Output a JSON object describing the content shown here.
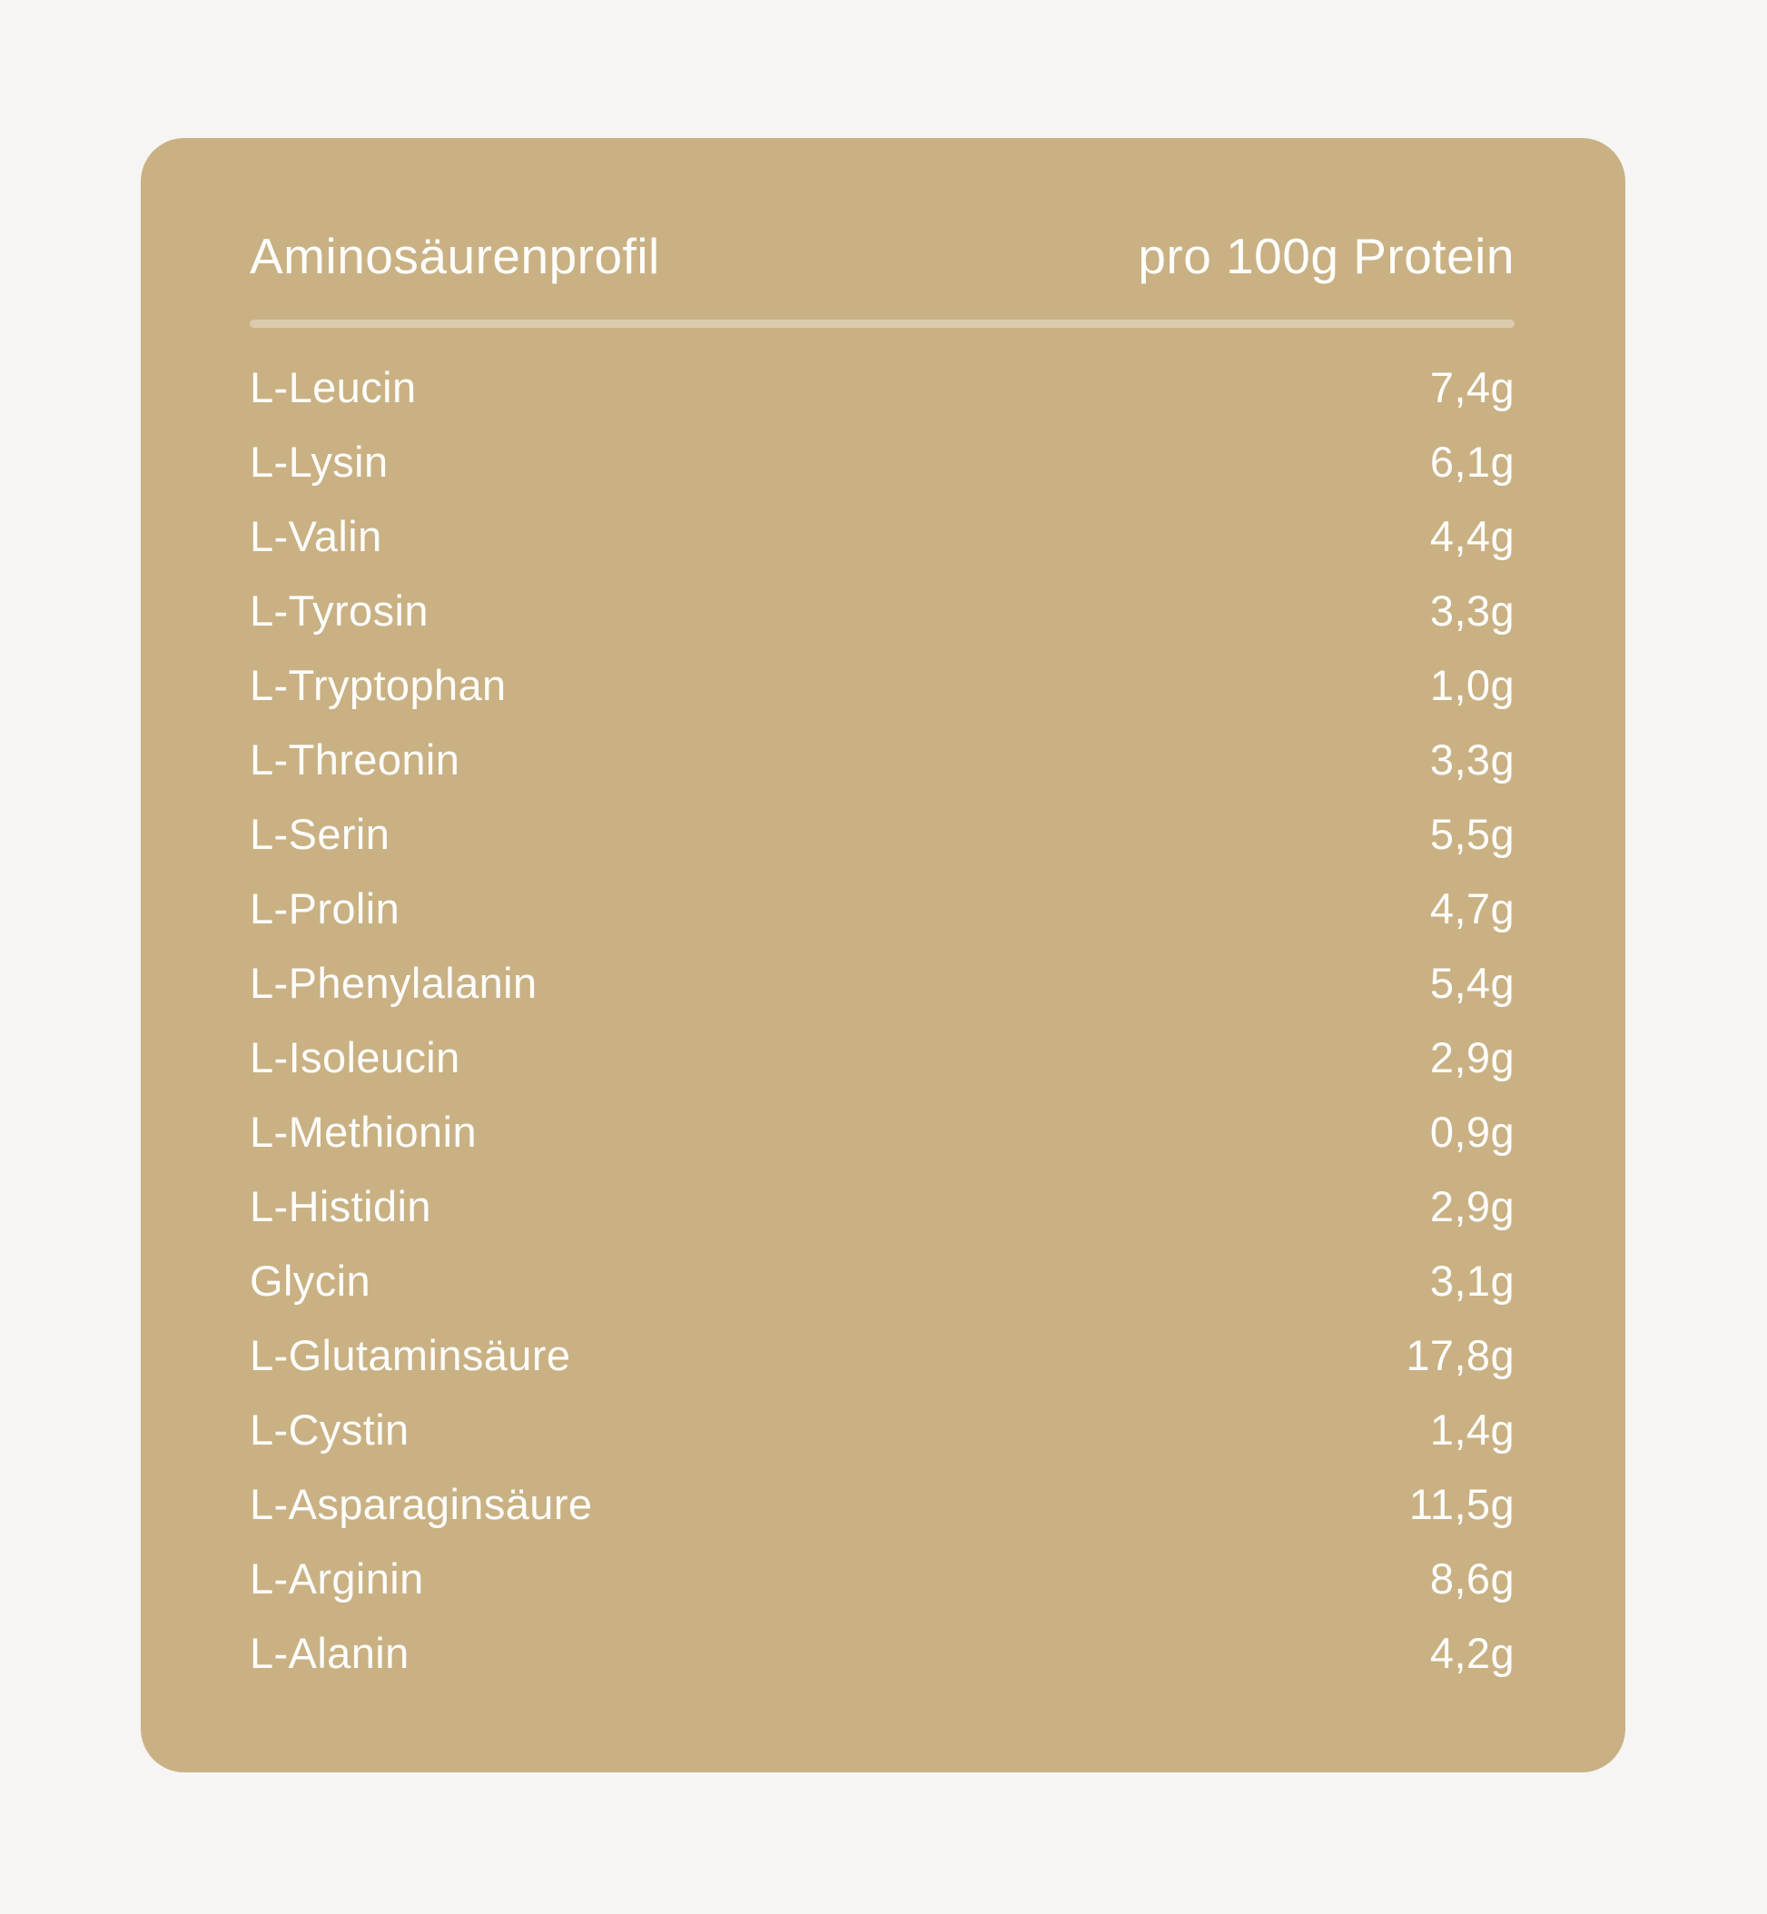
{
  "page": {
    "background_color": "#f6f5f4"
  },
  "card": {
    "background_color": "#c9b183",
    "text_color": "#fdfdfc",
    "divider_color": "rgba(255,255,255,0.34)",
    "header": {
      "title": "Aminosäurenprofil",
      "unit_label": "pro 100g Protein"
    },
    "rows": [
      {
        "label": "L-Leucin",
        "value": "7,4g"
      },
      {
        "label": "L-Lysin",
        "value": "6,1g"
      },
      {
        "label": "L-Valin",
        "value": "4,4g"
      },
      {
        "label": "L-Tyrosin",
        "value": "3,3g"
      },
      {
        "label": "L-Tryptophan",
        "value": "1,0g"
      },
      {
        "label": "L-Threonin",
        "value": "3,3g"
      },
      {
        "label": "L-Serin",
        "value": "5,5g"
      },
      {
        "label": "L-Prolin",
        "value": "4,7g"
      },
      {
        "label": "L-Phenylalanin",
        "value": "5,4g"
      },
      {
        "label": "L-Isoleucin",
        "value": "2,9g"
      },
      {
        "label": "L-Methionin",
        "value": "0,9g"
      },
      {
        "label": "L-Histidin",
        "value": "2,9g"
      },
      {
        "label": "Glycin",
        "value": "3,1g"
      },
      {
        "label": "L-Glutaminsäure",
        "value": "17,8g"
      },
      {
        "label": "L-Cystin",
        "value": "1,4g"
      },
      {
        "label": "L-Asparaginsäure",
        "value": "11,5g"
      },
      {
        "label": "L-Arginin",
        "value": "8,6g"
      },
      {
        "label": "L-Alanin",
        "value": "4,2g"
      }
    ]
  },
  "chart_data": {
    "type": "table",
    "title": "Aminosäurenprofil",
    "columns": [
      "Aminosäurenprofil",
      "pro 100g Protein"
    ],
    "unit": "g pro 100g Protein",
    "categories": [
      "L-Leucin",
      "L-Lysin",
      "L-Valin",
      "L-Tyrosin",
      "L-Tryptophan",
      "L-Threonin",
      "L-Serin",
      "L-Prolin",
      "L-Phenylalanin",
      "L-Isoleucin",
      "L-Methionin",
      "L-Histidin",
      "Glycin",
      "L-Glutaminsäure",
      "L-Cystin",
      "L-Asparaginsäure",
      "L-Arginin",
      "L-Alanin"
    ],
    "values": [
      7.4,
      6.1,
      4.4,
      3.3,
      1.0,
      3.3,
      5.5,
      4.7,
      5.4,
      2.9,
      0.9,
      2.9,
      3.1,
      17.8,
      1.4,
      11.5,
      8.6,
      4.2
    ]
  }
}
